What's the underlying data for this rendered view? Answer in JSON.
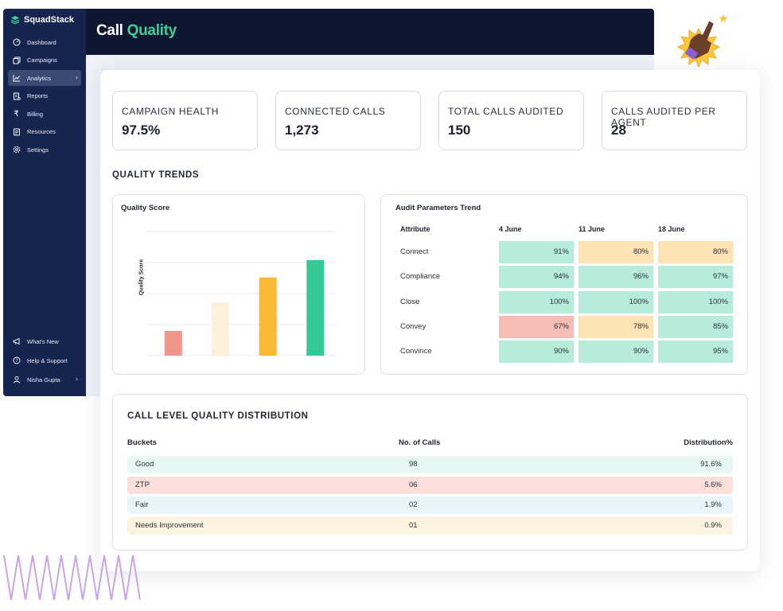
{
  "brand": {
    "name": "SquadStack"
  },
  "sidebar": {
    "items": [
      {
        "label": "Dashboard",
        "icon": "gauge-icon"
      },
      {
        "label": "Campaigns",
        "icon": "copy-icon"
      },
      {
        "label": "Analytics",
        "icon": "chart-line-icon",
        "active": true
      },
      {
        "label": "Reports",
        "icon": "report-icon"
      },
      {
        "label": "Billing",
        "icon": "rupee-icon"
      },
      {
        "label": "Resources",
        "icon": "document-icon"
      },
      {
        "label": "Settings",
        "icon": "gear-icon"
      }
    ],
    "bottom_items": [
      {
        "label": "What's New",
        "icon": "megaphone-icon"
      },
      {
        "label": "Help & Support",
        "icon": "help-icon"
      },
      {
        "label": "Nisha Gupta",
        "icon": "user-icon"
      }
    ]
  },
  "header": {
    "title_plain": "Call",
    "title_accent": "Quality"
  },
  "stats": [
    {
      "label": "CAMPAIGN HEALTH",
      "value": "97.5%"
    },
    {
      "label": "CONNECTED CALLS",
      "value": "1,273"
    },
    {
      "label": "TOTAL CALLS AUDITED",
      "value": "150"
    },
    {
      "label": "CALLS AUDITED PER AGENT",
      "value": "28"
    }
  ],
  "quality_trends": {
    "title": "QUALITY TRENDS"
  },
  "chart_data": {
    "type": "bar",
    "title": "Quality Score",
    "ylabel": "Quality Score",
    "xlabel": "",
    "grid": true,
    "ylim": [
      0,
      100
    ],
    "values": [
      20,
      43,
      63,
      77
    ],
    "colors": [
      "#f0958a",
      "#fdf1dc",
      "#fbb837",
      "#34c995"
    ]
  },
  "audit": {
    "title": "Audit Parameters Trend",
    "headers": [
      "Attribute",
      "4 June",
      "11 June",
      "18 June"
    ],
    "rows": [
      {
        "attribute": "Connect",
        "values": [
          "91%",
          "80%",
          "80%"
        ],
        "colors": [
          "#b7ecdb",
          "#fde3b4",
          "#fde3b4"
        ]
      },
      {
        "attribute": "Compliance",
        "values": [
          "94%",
          "96%",
          "97%"
        ],
        "colors": [
          "#b7ecdb",
          "#b7ecdb",
          "#b7ecdb"
        ]
      },
      {
        "attribute": "Close",
        "values": [
          "100%",
          "100%",
          "100%"
        ],
        "colors": [
          "#b7ecdb",
          "#b7ecdb",
          "#b7ecdb"
        ]
      },
      {
        "attribute": "Convey",
        "values": [
          "67%",
          "78%",
          "85%"
        ],
        "colors": [
          "#f5bdb6",
          "#fde3b4",
          "#b7ecdb"
        ]
      },
      {
        "attribute": "Convince",
        "values": [
          "90%",
          "90%",
          "95%"
        ],
        "colors": [
          "#b7ecdb",
          "#b7ecdb",
          "#b7ecdb"
        ]
      }
    ]
  },
  "distribution": {
    "title": "CALL LEVEL QUALITY DISTRIBUTION",
    "headers": [
      "Buckets",
      "No. of Calls",
      "Distribution%"
    ],
    "rows": [
      {
        "bucket": "Good",
        "calls": "98",
        "pct": "91.6%",
        "color": "#e6f8f1"
      },
      {
        "bucket": "ZTP",
        "calls": "06",
        "pct": "5.6%",
        "color": "#fbdfdb"
      },
      {
        "bucket": "Fair",
        "calls": "02",
        "pct": "1.9%",
        "color": "#e8f6fc"
      },
      {
        "bucket": "Needs Improvement",
        "calls": "01",
        "pct": "0.9%",
        "color": "#fdf3e0"
      }
    ]
  },
  "decor": {
    "hand_icon": "pointing-hand-icon",
    "star_icon": "star-icon",
    "zigzag_color": "#c9a4ec"
  }
}
